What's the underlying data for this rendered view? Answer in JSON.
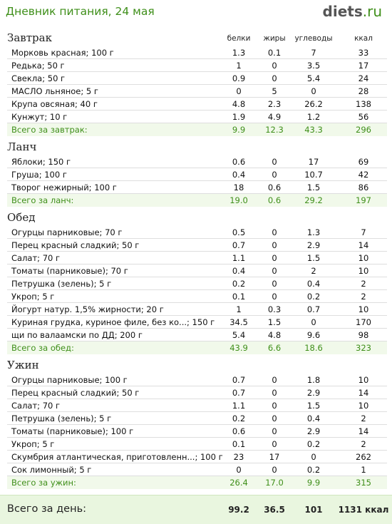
{
  "header": {
    "title": "Дневник питания, 24 мая",
    "logo_main": "diets",
    "logo_tld": ".ru"
  },
  "columns": {
    "protein": "белки",
    "fat": "жиры",
    "carbs": "углеводы",
    "kcal": "ккал"
  },
  "sections": [
    {
      "name": "Завтрак",
      "items": [
        {
          "name": "Морковь красная; 100 г",
          "p": "1.3",
          "f": "0.1",
          "c": "7",
          "k": "33"
        },
        {
          "name": "Редька; 50 г",
          "p": "1",
          "f": "0",
          "c": "3.5",
          "k": "17"
        },
        {
          "name": "Свекла; 50 г",
          "p": "0.9",
          "f": "0",
          "c": "5.4",
          "k": "24"
        },
        {
          "name": "МАСЛО льняное; 5 г",
          "p": "0",
          "f": "5",
          "c": "0",
          "k": "28"
        },
        {
          "name": "Крупа овсяная; 40 г",
          "p": "4.8",
          "f": "2.3",
          "c": "26.2",
          "k": "138"
        },
        {
          "name": "Кунжут; 10 г",
          "p": "1.9",
          "f": "4.9",
          "c": "1.2",
          "k": "56"
        }
      ],
      "total": {
        "name": "Всего за завтрак:",
        "p": "9.9",
        "f": "12.3",
        "c": "43.3",
        "k": "296"
      }
    },
    {
      "name": "Ланч",
      "items": [
        {
          "name": "Яблоки; 150 г",
          "p": "0.6",
          "f": "0",
          "c": "17",
          "k": "69"
        },
        {
          "name": "Груша; 100 г",
          "p": "0.4",
          "f": "0",
          "c": "10.7",
          "k": "42"
        },
        {
          "name": "Творог нежирный; 100 г",
          "p": "18",
          "f": "0.6",
          "c": "1.5",
          "k": "86"
        }
      ],
      "total": {
        "name": "Всего за ланч:",
        "p": "19.0",
        "f": "0.6",
        "c": "29.2",
        "k": "197"
      }
    },
    {
      "name": "Обед",
      "items": [
        {
          "name": "Огурцы парниковые; 70 г",
          "p": "0.5",
          "f": "0",
          "c": "1.3",
          "k": "7"
        },
        {
          "name": "Перец красный сладкий; 50 г",
          "p": "0.7",
          "f": "0",
          "c": "2.9",
          "k": "14"
        },
        {
          "name": "Салат; 70 г",
          "p": "1.1",
          "f": "0",
          "c": "1.5",
          "k": "10"
        },
        {
          "name": "Томаты (парниковые); 70 г",
          "p": "0.4",
          "f": "0",
          "c": "2",
          "k": "10"
        },
        {
          "name": "Петрушка (зелень); 5 г",
          "p": "0.2",
          "f": "0",
          "c": "0.4",
          "k": "2"
        },
        {
          "name": "Укроп; 5 г",
          "p": "0.1",
          "f": "0",
          "c": "0.2",
          "k": "2"
        },
        {
          "name": "Йогурт натур. 1,5% жирности; 20 г",
          "p": "1",
          "f": "0.3",
          "c": "0.7",
          "k": "10"
        },
        {
          "name": "Куриная грудка, куриное филе, без ко...; 150 г",
          "p": "34.5",
          "f": "1.5",
          "c": "0",
          "k": "170"
        },
        {
          "name": "щи по валаамски по ДД; 200 г",
          "p": "5.4",
          "f": "4.8",
          "c": "9.6",
          "k": "98"
        }
      ],
      "total": {
        "name": "Всего за обед:",
        "p": "43.9",
        "f": "6.6",
        "c": "18.6",
        "k": "323"
      }
    },
    {
      "name": "Ужин",
      "items": [
        {
          "name": "Огурцы парниковые; 100 г",
          "p": "0.7",
          "f": "0",
          "c": "1.8",
          "k": "10"
        },
        {
          "name": "Перец красный сладкий; 50 г",
          "p": "0.7",
          "f": "0",
          "c": "2.9",
          "k": "14"
        },
        {
          "name": "Салат; 70 г",
          "p": "1.1",
          "f": "0",
          "c": "1.5",
          "k": "10"
        },
        {
          "name": "Петрушка (зелень); 5 г",
          "p": "0.2",
          "f": "0",
          "c": "0.4",
          "k": "2"
        },
        {
          "name": "Томаты (парниковые); 100 г",
          "p": "0.6",
          "f": "0",
          "c": "2.9",
          "k": "14"
        },
        {
          "name": "Укроп; 5 г",
          "p": "0.1",
          "f": "0",
          "c": "0.2",
          "k": "2"
        },
        {
          "name": "Скумбрия атлантическая, приготовленн...; 100 г",
          "p": "23",
          "f": "17",
          "c": "0",
          "k": "262"
        },
        {
          "name": "Сок лимонный; 5 г",
          "p": "0",
          "f": "0",
          "c": "0.2",
          "k": "1"
        }
      ],
      "total": {
        "name": "Всего за ужин:",
        "p": "26.4",
        "f": "17.0",
        "c": "9.9",
        "k": "315"
      }
    }
  ],
  "day": {
    "label": "Всего за день:",
    "p": "99.2",
    "f": "36.5",
    "c": "101",
    "k": "1131 ккал"
  }
}
